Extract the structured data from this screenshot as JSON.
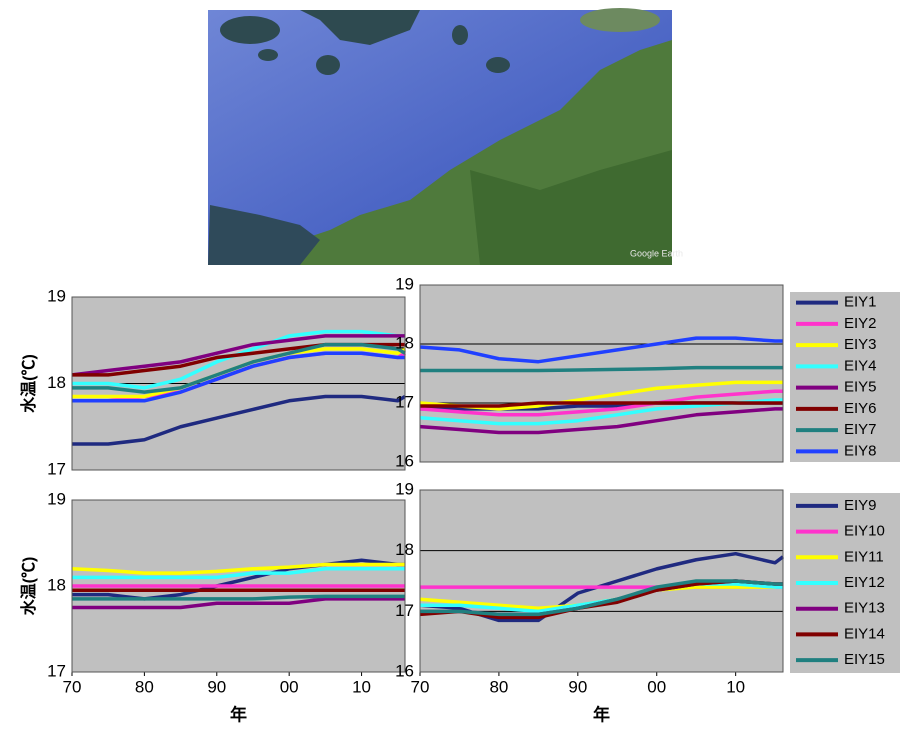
{
  "map": {
    "credit": "Google Earth"
  },
  "chart_data": [
    {
      "type": "line",
      "ylabel": "水温(℃)",
      "x": [
        1970,
        1975,
        1980,
        1985,
        1990,
        1995,
        2000,
        2005,
        2010,
        2015,
        2016
      ],
      "xlim": [
        1970,
        2016
      ],
      "ylim": [
        17,
        19
      ],
      "yticks": [
        17,
        18,
        19
      ],
      "grid": true,
      "series": [
        {
          "color": "#1f2a80",
          "values": [
            17.3,
            17.3,
            17.35,
            17.5,
            17.6,
            17.7,
            17.8,
            17.85,
            17.85,
            17.8,
            17.85
          ]
        },
        {
          "color": "#ff33cc",
          "values": [
            17.8,
            17.8,
            17.85,
            17.9,
            18.05,
            18.2,
            18.3,
            18.35,
            18.35,
            18.3,
            18.35
          ]
        },
        {
          "color": "#ffff00",
          "values": [
            17.85,
            17.85,
            17.85,
            17.95,
            18.1,
            18.25,
            18.35,
            18.4,
            18.4,
            18.35,
            18.4
          ]
        },
        {
          "color": "#33ffff",
          "values": [
            18.0,
            18.0,
            17.95,
            18.05,
            18.25,
            18.4,
            18.55,
            18.6,
            18.6,
            18.55,
            18.55
          ]
        },
        {
          "color": "#800080",
          "values": [
            18.1,
            18.15,
            18.2,
            18.25,
            18.35,
            18.45,
            18.5,
            18.55,
            18.55,
            18.55,
            18.55
          ]
        },
        {
          "color": "#800000",
          "values": [
            18.1,
            18.1,
            18.15,
            18.2,
            18.3,
            18.35,
            18.4,
            18.45,
            18.45,
            18.45,
            18.45
          ]
        },
        {
          "color": "#208080",
          "values": [
            17.95,
            17.95,
            17.9,
            17.95,
            18.1,
            18.25,
            18.35,
            18.45,
            18.45,
            18.4,
            18.35
          ]
        },
        {
          "color": "#2040ff",
          "values": [
            17.8,
            17.8,
            17.8,
            17.9,
            18.05,
            18.2,
            18.3,
            18.35,
            18.35,
            18.3,
            18.3
          ]
        }
      ]
    },
    {
      "type": "line",
      "legend": "right",
      "x": [
        1970,
        1975,
        1980,
        1985,
        1990,
        1995,
        2000,
        2005,
        2010,
        2015,
        2016
      ],
      "xlim": [
        1970,
        2016
      ],
      "ylim": [
        16,
        19
      ],
      "yticks": [
        16,
        17,
        18,
        19
      ],
      "grid": true,
      "series": [
        {
          "name": "EIY1",
          "color": "#1f2a80",
          "values": [
            16.9,
            16.9,
            16.9,
            16.9,
            16.95,
            16.95,
            17.0,
            17.0,
            17.0,
            17.0,
            17.0
          ]
        },
        {
          "name": "EIY2",
          "color": "#ff33cc",
          "values": [
            16.9,
            16.85,
            16.8,
            16.8,
            16.85,
            16.9,
            17.0,
            17.1,
            17.15,
            17.2,
            17.2
          ]
        },
        {
          "name": "EIY3",
          "color": "#ffff00",
          "values": [
            17.0,
            16.95,
            16.9,
            16.95,
            17.05,
            17.15,
            17.25,
            17.3,
            17.35,
            17.35,
            17.35
          ]
        },
        {
          "name": "EIY4",
          "color": "#33ffff",
          "values": [
            16.75,
            16.7,
            16.65,
            16.65,
            16.7,
            16.8,
            16.9,
            16.95,
            17.0,
            17.05,
            17.05
          ]
        },
        {
          "name": "EIY5",
          "color": "#800080",
          "values": [
            16.6,
            16.55,
            16.5,
            16.5,
            16.55,
            16.6,
            16.7,
            16.8,
            16.85,
            16.9,
            16.9
          ]
        },
        {
          "name": "EIY6",
          "color": "#800000",
          "values": [
            16.95,
            16.95,
            16.95,
            17.0,
            17.0,
            17.0,
            17.0,
            17.0,
            17.0,
            17.0,
            17.0
          ]
        },
        {
          "name": "EIY7",
          "color": "#208080",
          "values": [
            17.55,
            17.55,
            17.55,
            17.55,
            17.56,
            17.57,
            17.58,
            17.6,
            17.6,
            17.6,
            17.6
          ]
        },
        {
          "name": "EIY8",
          "color": "#2040ff",
          "values": [
            17.95,
            17.9,
            17.75,
            17.7,
            17.8,
            17.9,
            18.0,
            18.1,
            18.1,
            18.05,
            18.05
          ]
        }
      ]
    },
    {
      "type": "line",
      "ylabel": "水温(℃)",
      "xlabel": "年",
      "x": [
        1970,
        1975,
        1980,
        1985,
        1990,
        1995,
        2000,
        2005,
        2010,
        2015,
        2016
      ],
      "xlim": [
        1970,
        2016
      ],
      "xticks": [
        {
          "value": 1970,
          "label": "70"
        },
        {
          "value": 1980,
          "label": "80"
        },
        {
          "value": 1990,
          "label": "90"
        },
        {
          "value": 2000,
          "label": "00"
        },
        {
          "value": 2010,
          "label": "10"
        }
      ],
      "ylim": [
        17,
        19
      ],
      "yticks": [
        17,
        18,
        19
      ],
      "grid": true,
      "series": [
        {
          "color": "#1f2a80",
          "values": [
            17.9,
            17.9,
            17.85,
            17.9,
            18.0,
            18.1,
            18.2,
            18.25,
            18.3,
            18.25,
            18.25
          ]
        },
        {
          "color": "#ff33cc",
          "values": [
            18.0,
            18.0,
            18.0,
            18.0,
            18.0,
            18.0,
            18.0,
            18.0,
            18.0,
            18.0,
            18.0
          ]
        },
        {
          "color": "#ffff00",
          "values": [
            18.2,
            18.18,
            18.15,
            18.15,
            18.17,
            18.2,
            18.22,
            18.25,
            18.25,
            18.25,
            18.25
          ]
        },
        {
          "color": "#33ffff",
          "values": [
            18.1,
            18.1,
            18.1,
            18.1,
            18.1,
            18.15,
            18.15,
            18.2,
            18.2,
            18.2,
            18.2
          ]
        },
        {
          "color": "#800080",
          "values": [
            17.75,
            17.75,
            17.75,
            17.75,
            17.8,
            17.8,
            17.8,
            17.85,
            17.85,
            17.85,
            17.85
          ]
        },
        {
          "color": "#800000",
          "values": [
            17.95,
            17.95,
            17.95,
            17.95,
            17.95,
            17.95,
            17.95,
            17.95,
            17.95,
            17.95,
            17.95
          ]
        },
        {
          "color": "#208080",
          "values": [
            17.85,
            17.85,
            17.85,
            17.85,
            17.85,
            17.85,
            17.87,
            17.88,
            17.88,
            17.88,
            17.88
          ]
        }
      ]
    },
    {
      "type": "line",
      "legend": "right",
      "xlabel": "年",
      "x": [
        1970,
        1975,
        1980,
        1985,
        1990,
        1995,
        2000,
        2005,
        2010,
        2015,
        2016
      ],
      "xlim": [
        1970,
        2016
      ],
      "xticks": [
        {
          "value": 1970,
          "label": "70"
        },
        {
          "value": 1980,
          "label": "80"
        },
        {
          "value": 1990,
          "label": "90"
        },
        {
          "value": 2000,
          "label": "00"
        },
        {
          "value": 2010,
          "label": "10"
        }
      ],
      "ylim": [
        16,
        19
      ],
      "yticks": [
        16,
        17,
        18,
        19
      ],
      "grid": true,
      "series": [
        {
          "name": "EIY9",
          "color": "#1f2a80",
          "values": [
            17.1,
            17.05,
            16.85,
            16.85,
            17.3,
            17.5,
            17.7,
            17.85,
            17.95,
            17.8,
            17.9
          ]
        },
        {
          "name": "EIY10",
          "color": "#ff33cc",
          "values": [
            17.4,
            17.4,
            17.4,
            17.4,
            17.4,
            17.4,
            17.4,
            17.4,
            17.4,
            17.4,
            17.4
          ]
        },
        {
          "name": "EIY11",
          "color": "#ffff00",
          "values": [
            17.2,
            17.15,
            17.1,
            17.05,
            17.1,
            17.2,
            17.35,
            17.4,
            17.4,
            17.4,
            17.45
          ]
        },
        {
          "name": "EIY12",
          "color": "#33ffff",
          "values": [
            17.1,
            17.1,
            17.05,
            17.0,
            17.1,
            17.2,
            17.35,
            17.45,
            17.45,
            17.4,
            17.4
          ]
        },
        {
          "name": "EIY13",
          "color": "#800080",
          "values": [
            17.0,
            17.0,
            16.95,
            16.95,
            17.05,
            17.2,
            17.35,
            17.45,
            17.5,
            17.45,
            17.45
          ]
        },
        {
          "name": "EIY14",
          "color": "#800000",
          "values": [
            16.95,
            17.0,
            16.9,
            16.9,
            17.05,
            17.15,
            17.35,
            17.45,
            17.5,
            17.45,
            17.45
          ]
        },
        {
          "name": "EIY15",
          "color": "#208080",
          "values": [
            17.0,
            17.0,
            16.95,
            16.95,
            17.05,
            17.2,
            17.4,
            17.5,
            17.5,
            17.45,
            17.45
          ]
        }
      ]
    }
  ]
}
